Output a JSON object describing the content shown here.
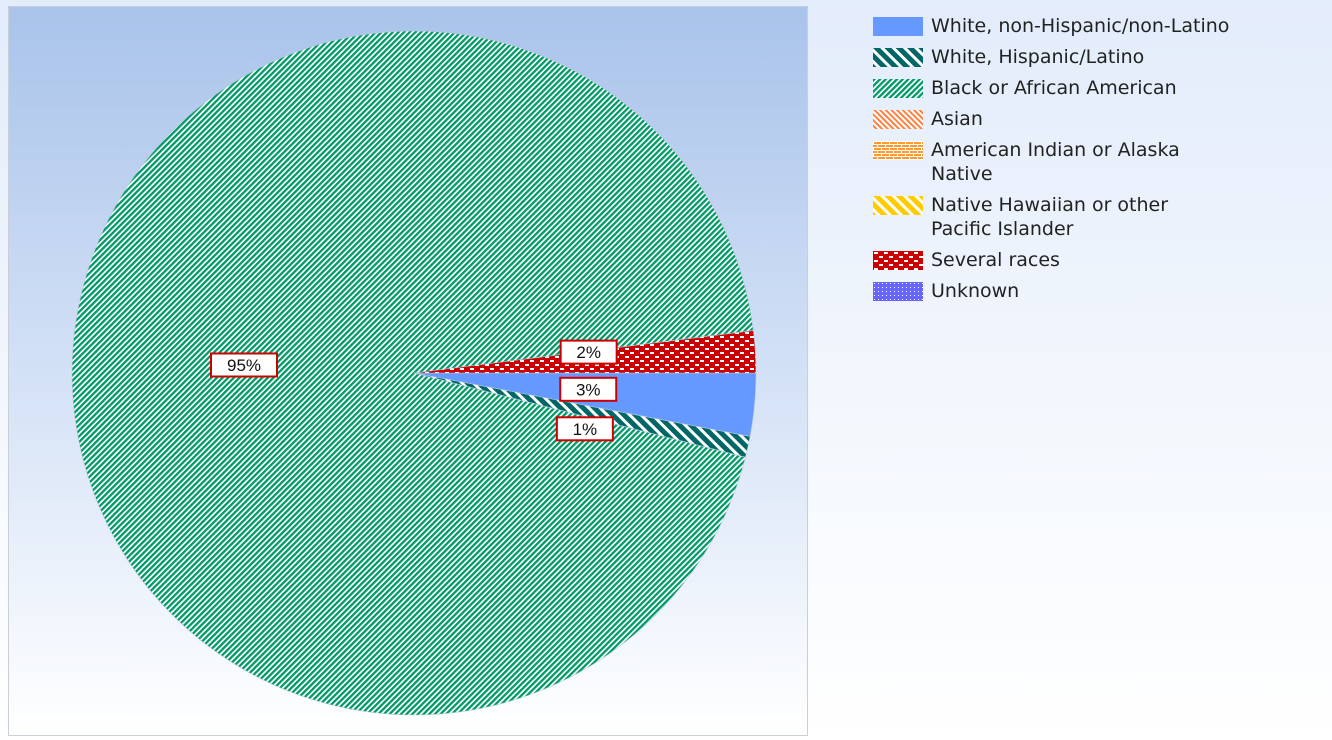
{
  "chart_data": {
    "type": "pie",
    "slices": [
      {
        "name": "White, non-Hispanic/non-Latino",
        "value": 3,
        "label": "3%",
        "pattern": "solid",
        "color": "#6699ff"
      },
      {
        "name": "White, Hispanic/Latino",
        "value": 1,
        "label": "1%",
        "pattern": "wide-diag-up",
        "color": "#006666"
      },
      {
        "name": "Black or African American",
        "value": 95,
        "label": "95%",
        "pattern": "diag-down",
        "color": "#009966"
      },
      {
        "name": "Asian",
        "value": 0,
        "label": "",
        "pattern": "diag-up",
        "color": "#ff8040"
      },
      {
        "name": "American Indian or Alaska Native",
        "value": 0,
        "label": "",
        "pattern": "brick",
        "color": "#ff9933"
      },
      {
        "name": "Native Hawaiian or other Pacific Islander",
        "value": 0,
        "label": "",
        "pattern": "wide-diag-up",
        "color": "#ffcc00"
      },
      {
        "name": "Several races",
        "value": 2,
        "label": "2%",
        "pattern": "dashes",
        "color": "#cc0000"
      },
      {
        "name": "Unknown",
        "value": 0,
        "label": "",
        "pattern": "dots",
        "color": "#6666ff"
      }
    ],
    "legend": {
      "position": "right"
    },
    "label_box_border_color": "#cc0000"
  }
}
